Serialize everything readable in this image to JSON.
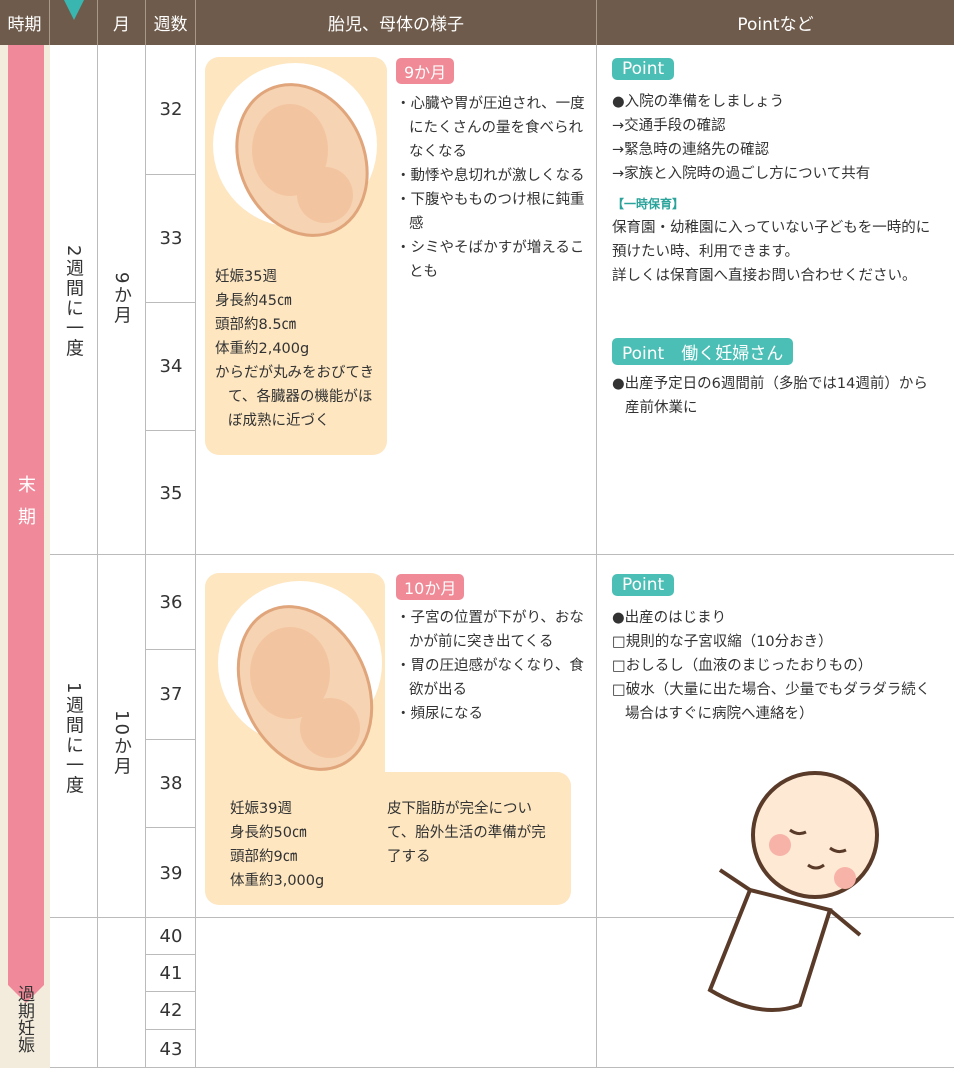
{
  "header": {
    "period": "時期",
    "month": "月",
    "week": "週数",
    "status": "胎児、母体の様子",
    "point": "Pointなど"
  },
  "period": {
    "late": "末期",
    "overdue": "過期妊娠"
  },
  "sections": [
    {
      "frequency": "2週間に一度",
      "month": "9か月",
      "weeks": [
        32,
        33,
        34,
        35
      ],
      "badge": "9か月",
      "stats": [
        "妊娠35週",
        "身長約45㎝",
        "頭部約8.5㎝",
        "体重約2,400g",
        "からだが丸みをおびてきて、各臓器の機能がほぼ成熟に近づく"
      ],
      "symptoms": [
        "・心臓や胃が圧迫され、一度にたくさんの量を食べられなくなる",
        "・動悸や息切れが激しくなる",
        "・下腹やもものつけ根に鈍重感",
        "・シミやそばかすが増えることも"
      ],
      "point_title": "Point",
      "points": [
        "●入院の準備をしましょう",
        "→交通手段の確認",
        "→緊急時の連絡先の確認",
        "→家族と入院時の過ごし方について共有"
      ],
      "childcare_title": "【一時保育】",
      "childcare": [
        "保育園・幼稚園に入っていない子どもを一時的に預けたい時、利用できます。",
        "詳しくは保育園へ直接お問い合わせください。"
      ],
      "work_title": "Point　働く妊婦さん",
      "work": [
        "●出産予定日の6週間前（多胎では14週前）から産前休業に"
      ]
    },
    {
      "frequency": "1週間に一度",
      "month": "10か月",
      "weeks": [
        36,
        37,
        38,
        39
      ],
      "badge": "10か月",
      "stats": [
        "妊娠39週",
        "身長約50㎝",
        "頭部約9㎝",
        "体重約3,000g"
      ],
      "stats_note": "皮下脂肪が完全について、胎外生活の準備が完了する",
      "symptoms": [
        "・子宮の位置が下がり、おなかが前に突き出てくる",
        "・胃の圧迫感がなくなり、食欲が出る",
        "・頻尿になる"
      ],
      "point_title": "Point",
      "points": [
        "●出産のはじまり",
        "□規則的な子宮収縮（10分おき）",
        "□おしるし（血液のまじったおりもの）",
        "□破水（大量に出た場合、少量でもダラダラ続く場合はすぐに病院へ連絡を）"
      ]
    }
  ],
  "overdue_weeks": [
    40,
    41,
    42,
    43
  ]
}
